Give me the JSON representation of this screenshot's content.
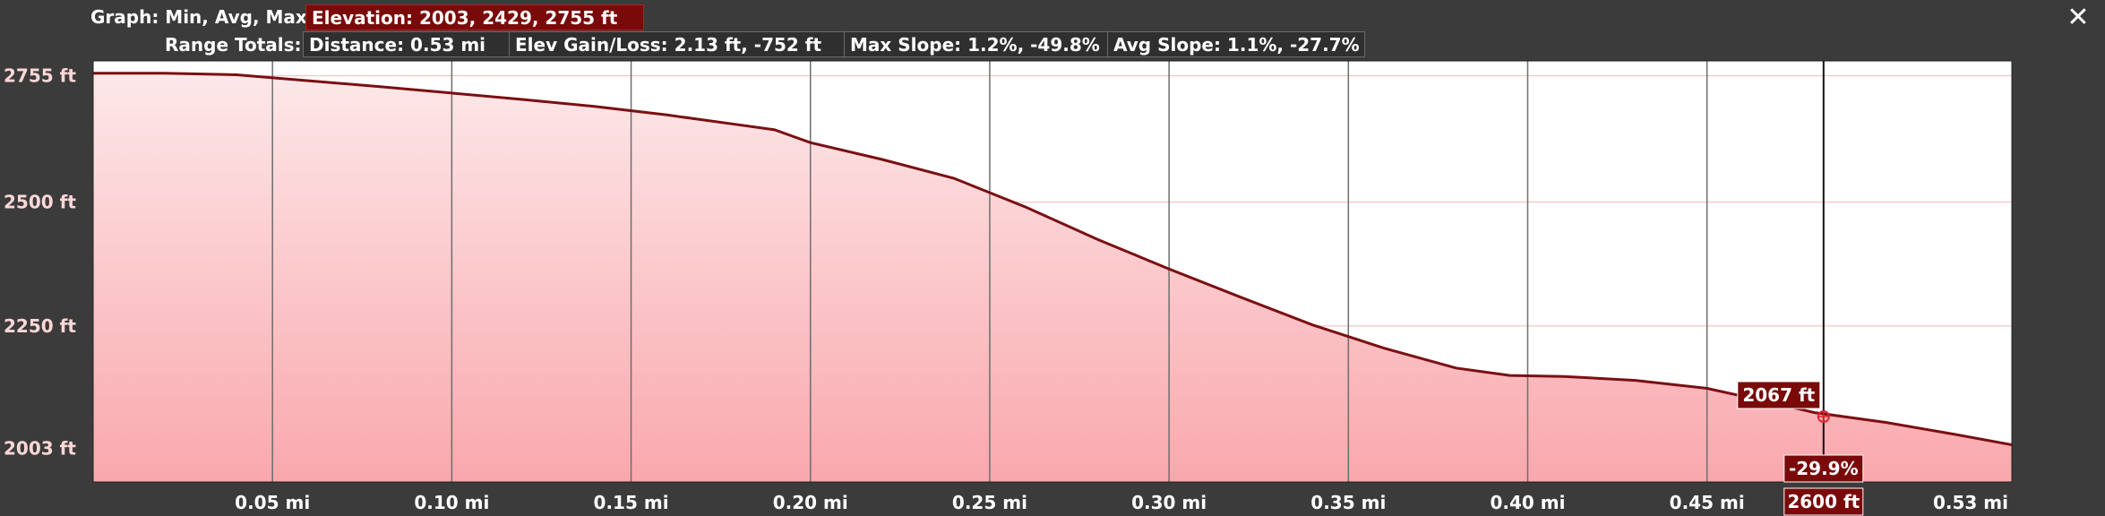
{
  "header": {
    "graph_label": "Graph: Min, Avg, Max",
    "elevation_summary": "Elevation: 2003, 2429, 2755 ft",
    "range_label": "Range Totals:",
    "distance": "Distance: 0.53 mi",
    "elev_gain_loss": "Elev Gain/Loss: 2.13 ft, -752 ft",
    "max_slope": "Max Slope: 1.2%, -49.8%",
    "avg_slope": "Avg Slope: 1.1%, -27.7%",
    "close_symbol": "✕"
  },
  "cursor": {
    "elevation_label": "2067 ft",
    "slope_label": "-29.9%",
    "x_readout": "2600 ft",
    "x_mi": 0.4825,
    "elevation_ft": 2067
  },
  "colors": {
    "line": "#7a0f12",
    "fill_top": "#fde8e9",
    "fill_bottom": "#f9a8ad",
    "tag_bg": "#7a0a0a",
    "grid": "#6e6e6e"
  },
  "chart_data": {
    "type": "area",
    "xlabel": "",
    "ylabel": "",
    "xlim": [
      0,
      0.535
    ],
    "ylim": [
      1935,
      2785
    ],
    "x_ticks": [
      0.05,
      0.1,
      0.15,
      0.2,
      0.25,
      0.3,
      0.35,
      0.4,
      0.45
    ],
    "x_tick_labels": [
      "0.05 mi",
      "0.10 mi",
      "0.15 mi",
      "0.20 mi",
      "0.25 mi",
      "0.30 mi",
      "0.35 mi",
      "0.40 mi",
      "0.45 mi"
    ],
    "x_end_label": "0.53 mi",
    "y_ticks": [
      2003,
      2250,
      2500,
      2755
    ],
    "y_tick_labels": [
      "2003 ft",
      "2250 ft",
      "2500 ft",
      "2755 ft"
    ],
    "grid": true,
    "series": [
      {
        "name": "",
        "x": [
          0,
          0.02,
          0.04,
          0.06,
          0.08,
          0.1,
          0.12,
          0.14,
          0.16,
          0.18,
          0.19,
          0.2,
          0.22,
          0.24,
          0.26,
          0.28,
          0.3,
          0.32,
          0.34,
          0.36,
          0.38,
          0.395,
          0.41,
          0.43,
          0.45,
          0.47,
          0.48,
          0.5,
          0.52,
          0.535
        ],
        "y": [
          2760,
          2760,
          2757,
          2745,
          2733,
          2720,
          2707,
          2693,
          2676,
          2656,
          2646,
          2620,
          2586,
          2548,
          2490,
          2425,
          2365,
          2308,
          2252,
          2205,
          2165,
          2150,
          2148,
          2140,
          2124,
          2092,
          2075,
          2055,
          2030,
          2010
        ]
      }
    ]
  }
}
